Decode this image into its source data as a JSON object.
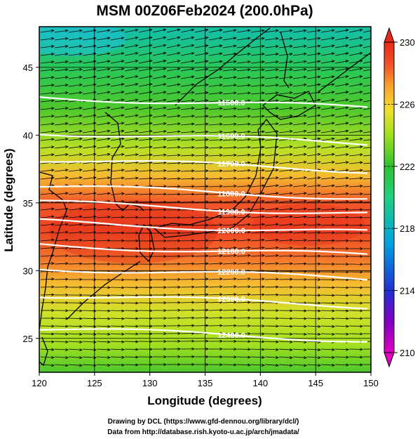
{
  "chart_data": {
    "type": "heatmap",
    "title": "MSM 00Z06Feb2024 (200.0hPa)",
    "xlabel": "Longitude (degrees)",
    "ylabel": "Latitude  (degrees)",
    "xlim": [
      120,
      150
    ],
    "ylim": [
      22.5,
      48
    ],
    "x_ticks": [
      120,
      125,
      130,
      135,
      140,
      145,
      150
    ],
    "y_ticks": [
      25,
      30,
      35,
      40,
      45
    ],
    "grid": true,
    "colorbar": {
      "range": [
        210,
        230
      ],
      "ticks": [
        210,
        214,
        218,
        222,
        226,
        230
      ],
      "colors": [
        "#e000c0",
        "#8000c0",
        "#2030d0",
        "#00a0e0",
        "#20d080",
        "#30c030",
        "#a0e020",
        "#f0e030",
        "#f8a030",
        "#f05028",
        "#e82818"
      ]
    },
    "contours": [
      {
        "label": "11500.0",
        "lat": 42.4
      },
      {
        "label": "11600.0",
        "lat": 39.8
      },
      {
        "label": "11700.0",
        "lat": 37.8
      },
      {
        "label": "11800.0",
        "lat": 35.8
      },
      {
        "label": "11900.0",
        "lat": 34.6
      },
      {
        "label": "12000.0",
        "lat": 33.2
      },
      {
        "label": "12100.0",
        "lat": 31.5
      },
      {
        "label": "12200.0",
        "lat": 29.8
      },
      {
        "label": "12300.0",
        "lat": 27.8
      },
      {
        "label": "12400.0",
        "lat": 25.3
      }
    ],
    "temperature_bands": [
      {
        "lat": 47.5,
        "value": 219
      },
      {
        "lat": 45,
        "value": 221
      },
      {
        "lat": 42,
        "value": 222.5
      },
      {
        "lat": 39,
        "value": 224.5
      },
      {
        "lat": 37,
        "value": 226.5
      },
      {
        "lat": 35,
        "value": 228.5
      },
      {
        "lat": 33,
        "value": 229
      },
      {
        "lat": 31,
        "value": 228
      },
      {
        "lat": 29,
        "value": 226.5
      },
      {
        "lat": 27,
        "value": 225
      },
      {
        "lat": 24.5,
        "value": 224
      },
      {
        "lat": 22.5,
        "value": 222.5
      }
    ],
    "wind": "westerly vectors"
  },
  "credits": {
    "line1": "Drawing by DCL (https://www.gfd-dennou.org/library/dcl/)",
    "line2": "Data from http://database.rish.kyoto-u.ac.jp/arch/jmadata/"
  }
}
